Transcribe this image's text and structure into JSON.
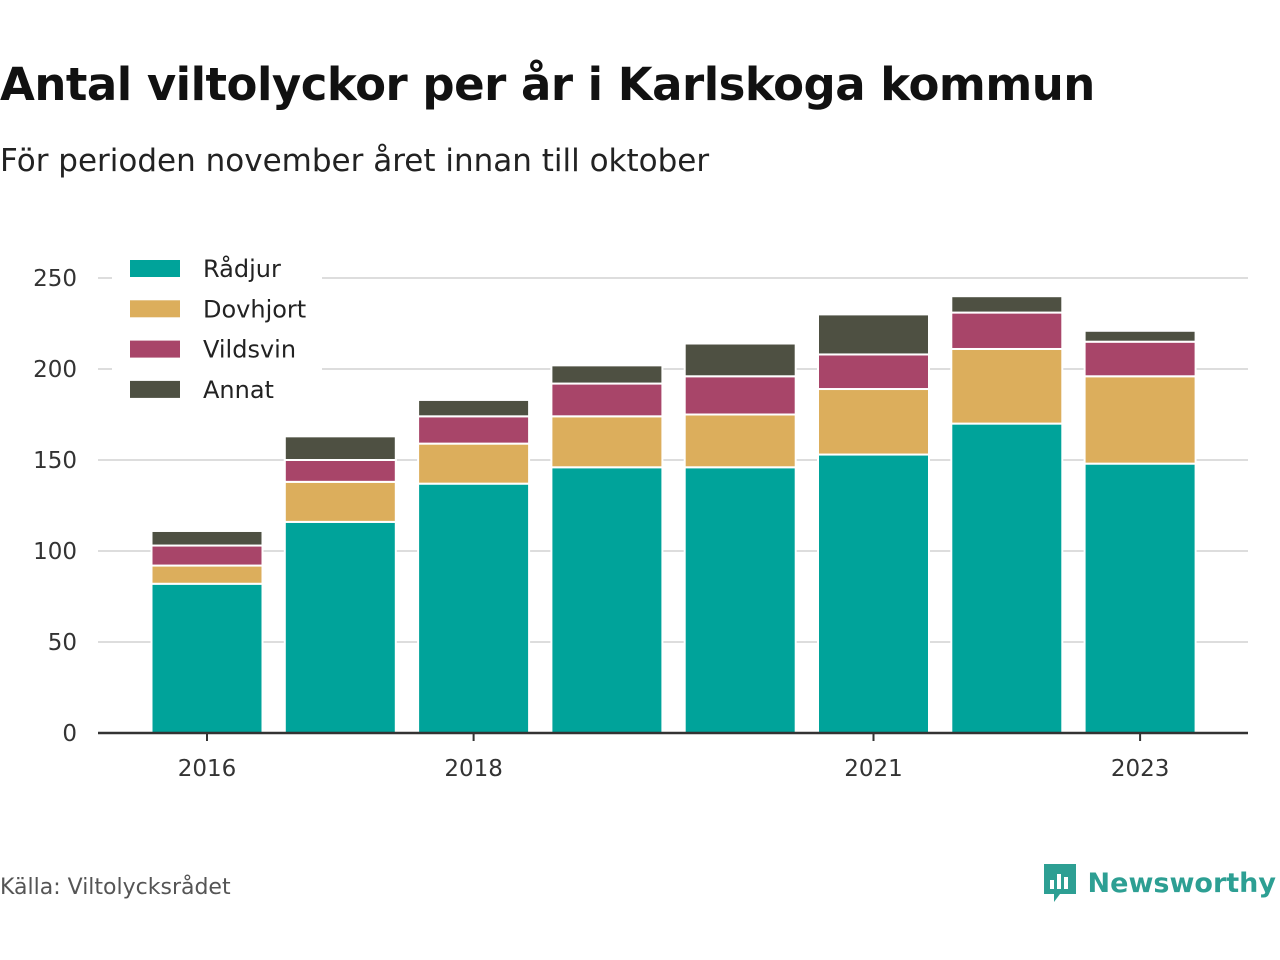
{
  "title": "Antal viltolyckor per år i Karlskoga kommun",
  "subtitle": "För perioden november året innan till oktober",
  "source": "Källa: Viltolycksrådet",
  "brand": "Newsworthy",
  "colors": {
    "Rådjur": "#00a39a",
    "Dovhjort": "#dcae5c",
    "Vildsvin": "#a84569",
    "Annat": "#4e5042",
    "grid": "#dddddd",
    "axis": "#333333",
    "brand": "#2d9f93"
  },
  "chart_data": {
    "type": "bar",
    "stacked": true,
    "categories": [
      "2016",
      "2017",
      "2018",
      "2019",
      "2020",
      "2021",
      "2022",
      "2023"
    ],
    "x_tick_labels": [
      "2016",
      "",
      "2018",
      "",
      "",
      "2021",
      "",
      "2023"
    ],
    "series": [
      {
        "name": "Rådjur",
        "values": [
          82,
          116,
          137,
          146,
          146,
          153,
          170,
          148
        ]
      },
      {
        "name": "Dovhjort",
        "values": [
          10,
          22,
          22,
          28,
          29,
          36,
          41,
          48
        ]
      },
      {
        "name": "Vildsvin",
        "values": [
          11,
          12,
          15,
          18,
          21,
          19,
          20,
          19
        ]
      },
      {
        "name": "Annat",
        "values": [
          8,
          13,
          9,
          10,
          18,
          22,
          9,
          6
        ]
      }
    ],
    "ylim": [
      0,
      260
    ],
    "yticks": [
      0,
      50,
      100,
      150,
      200,
      250
    ],
    "grid": true,
    "legend": "top-left"
  }
}
